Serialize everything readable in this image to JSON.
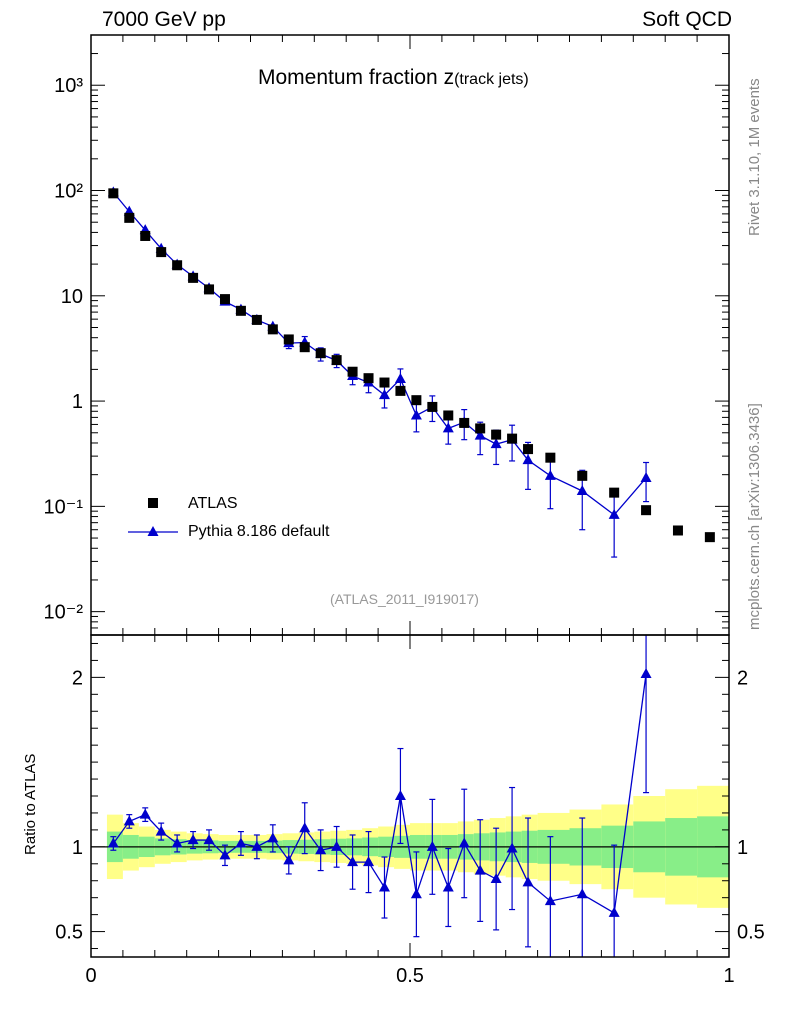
{
  "header": {
    "left": "7000 GeV pp",
    "right": "Soft QCD"
  },
  "side": {
    "top": "Rivet 3.1.10,  1M events",
    "bottom": "mcplots.cern.ch [arXiv:1306.3436]"
  },
  "analysis_id": "(ATLAS_2011_I919017)",
  "colors": {
    "mc": "#0000cc",
    "data": "#000000",
    "band_outer": "#ffff88",
    "band_inner": "#88ee88"
  },
  "chart_data": [
    {
      "type": "scatter",
      "title": "Momentum fraction",
      "title_symbol": "z",
      "title_sub": "(track jets)",
      "xlabel": "",
      "ylabel": "",
      "xlim": [
        0,
        1
      ],
      "ylim": [
        0.006,
        3000
      ],
      "yscale": "log",
      "y_ticks": [
        "10⁻²",
        "10⁻¹",
        "1",
        "10",
        "10²",
        "10³"
      ],
      "legend_position": "bottom-left",
      "x": [
        0.035,
        0.06,
        0.085,
        0.11,
        0.135,
        0.16,
        0.185,
        0.21,
        0.235,
        0.26,
        0.285,
        0.31,
        0.335,
        0.36,
        0.385,
        0.41,
        0.435,
        0.46,
        0.485,
        0.51,
        0.535,
        0.56,
        0.585,
        0.61,
        0.635,
        0.66,
        0.685,
        0.72,
        0.77,
        0.82,
        0.87,
        0.92,
        0.97
      ],
      "series": [
        {
          "name": "ATLAS",
          "marker": "square",
          "values": [
            94,
            55,
            37,
            26,
            19.5,
            14.8,
            11.5,
            9.3,
            7.2,
            5.9,
            4.8,
            3.85,
            3.25,
            2.85,
            2.45,
            1.9,
            1.65,
            1.5,
            1.25,
            1.02,
            0.88,
            0.73,
            0.62,
            0.55,
            0.48,
            0.44,
            0.35,
            0.29,
            0.195,
            0.135,
            0.092,
            0.059,
            0.051
          ]
        },
        {
          "name": "Pythia 8.186 default",
          "marker": "triangle",
          "values": [
            96,
            63,
            42,
            28,
            19.8,
            15.3,
            11.8,
            8.8,
            7.4,
            5.9,
            5.1,
            3.55,
            3.6,
            2.8,
            2.43,
            1.73,
            1.5,
            1.14,
            1.62,
            0.73,
            0.88,
            0.55,
            0.63,
            0.47,
            0.39,
            0.43,
            0.275,
            0.195,
            0.14,
            0.083,
            0.186
          ],
          "errors": [
            3,
            2.5,
            2,
            1.2,
            0.9,
            0.8,
            0.7,
            0.6,
            0.6,
            0.5,
            0.5,
            0.4,
            0.5,
            0.4,
            0.35,
            0.3,
            0.3,
            0.28,
            0.4,
            0.22,
            0.24,
            0.16,
            0.2,
            0.16,
            0.14,
            0.16,
            0.13,
            0.1,
            0.08,
            0.05,
            0.075
          ]
        }
      ]
    },
    {
      "type": "scatter",
      "title": "",
      "xlabel": "",
      "ylabel": "Ratio to ATLAS",
      "xlim": [
        0,
        1
      ],
      "ylim": [
        0.35,
        2.25
      ],
      "x_ticks": [
        "0",
        "0.5",
        "1"
      ],
      "y_ticks": [
        "0.5",
        "1",
        "2"
      ],
      "reference_line": 1,
      "band_edges": [
        0.025,
        0.05,
        0.075,
        0.1,
        0.125,
        0.15,
        0.175,
        0.2,
        0.225,
        0.25,
        0.275,
        0.3,
        0.325,
        0.35,
        0.375,
        0.4,
        0.425,
        0.45,
        0.475,
        0.5,
        0.525,
        0.55,
        0.575,
        0.6,
        0.625,
        0.65,
        0.675,
        0.7,
        0.75,
        0.8,
        0.85,
        0.9,
        0.95,
        1.0
      ],
      "band_outer_halfwidth": [
        0.19,
        0.14,
        0.12,
        0.1,
        0.09,
        0.08,
        0.075,
        0.07,
        0.07,
        0.07,
        0.075,
        0.08,
        0.085,
        0.09,
        0.095,
        0.1,
        0.11,
        0.12,
        0.13,
        0.14,
        0.14,
        0.14,
        0.15,
        0.16,
        0.17,
        0.18,
        0.19,
        0.2,
        0.22,
        0.25,
        0.3,
        0.34,
        0.36
      ],
      "band_inner_halfwidth": [
        0.09,
        0.07,
        0.06,
        0.05,
        0.045,
        0.04,
        0.038,
        0.035,
        0.035,
        0.035,
        0.037,
        0.04,
        0.042,
        0.045,
        0.048,
        0.05,
        0.055,
        0.06,
        0.065,
        0.07,
        0.07,
        0.07,
        0.075,
        0.08,
        0.085,
        0.09,
        0.095,
        0.1,
        0.11,
        0.125,
        0.15,
        0.17,
        0.18
      ],
      "series": [
        {
          "name": "Pythia 8.186 default",
          "x": [
            0.035,
            0.06,
            0.085,
            0.11,
            0.135,
            0.16,
            0.185,
            0.21,
            0.235,
            0.26,
            0.285,
            0.31,
            0.335,
            0.36,
            0.385,
            0.41,
            0.435,
            0.46,
            0.485,
            0.51,
            0.535,
            0.56,
            0.585,
            0.61,
            0.635,
            0.66,
            0.685,
            0.72,
            0.77,
            0.82,
            0.87
          ],
          "values": [
            1.02,
            1.15,
            1.19,
            1.09,
            1.02,
            1.04,
            1.04,
            0.95,
            1.02,
            1.0,
            1.05,
            0.92,
            1.11,
            0.98,
            1.0,
            0.91,
            0.91,
            0.76,
            1.3,
            0.72,
            1.0,
            0.76,
            1.02,
            0.86,
            0.81,
            0.99,
            0.79,
            0.68,
            0.72,
            0.61,
            2.02
          ],
          "errors": [
            0.04,
            0.04,
            0.04,
            0.05,
            0.05,
            0.05,
            0.06,
            0.06,
            0.07,
            0.07,
            0.08,
            0.08,
            0.15,
            0.12,
            0.12,
            0.16,
            0.18,
            0.18,
            0.28,
            0.25,
            0.28,
            0.23,
            0.32,
            0.3,
            0.3,
            0.36,
            0.38,
            0.38,
            0.45,
            0.4,
            0.7
          ]
        }
      ]
    }
  ]
}
